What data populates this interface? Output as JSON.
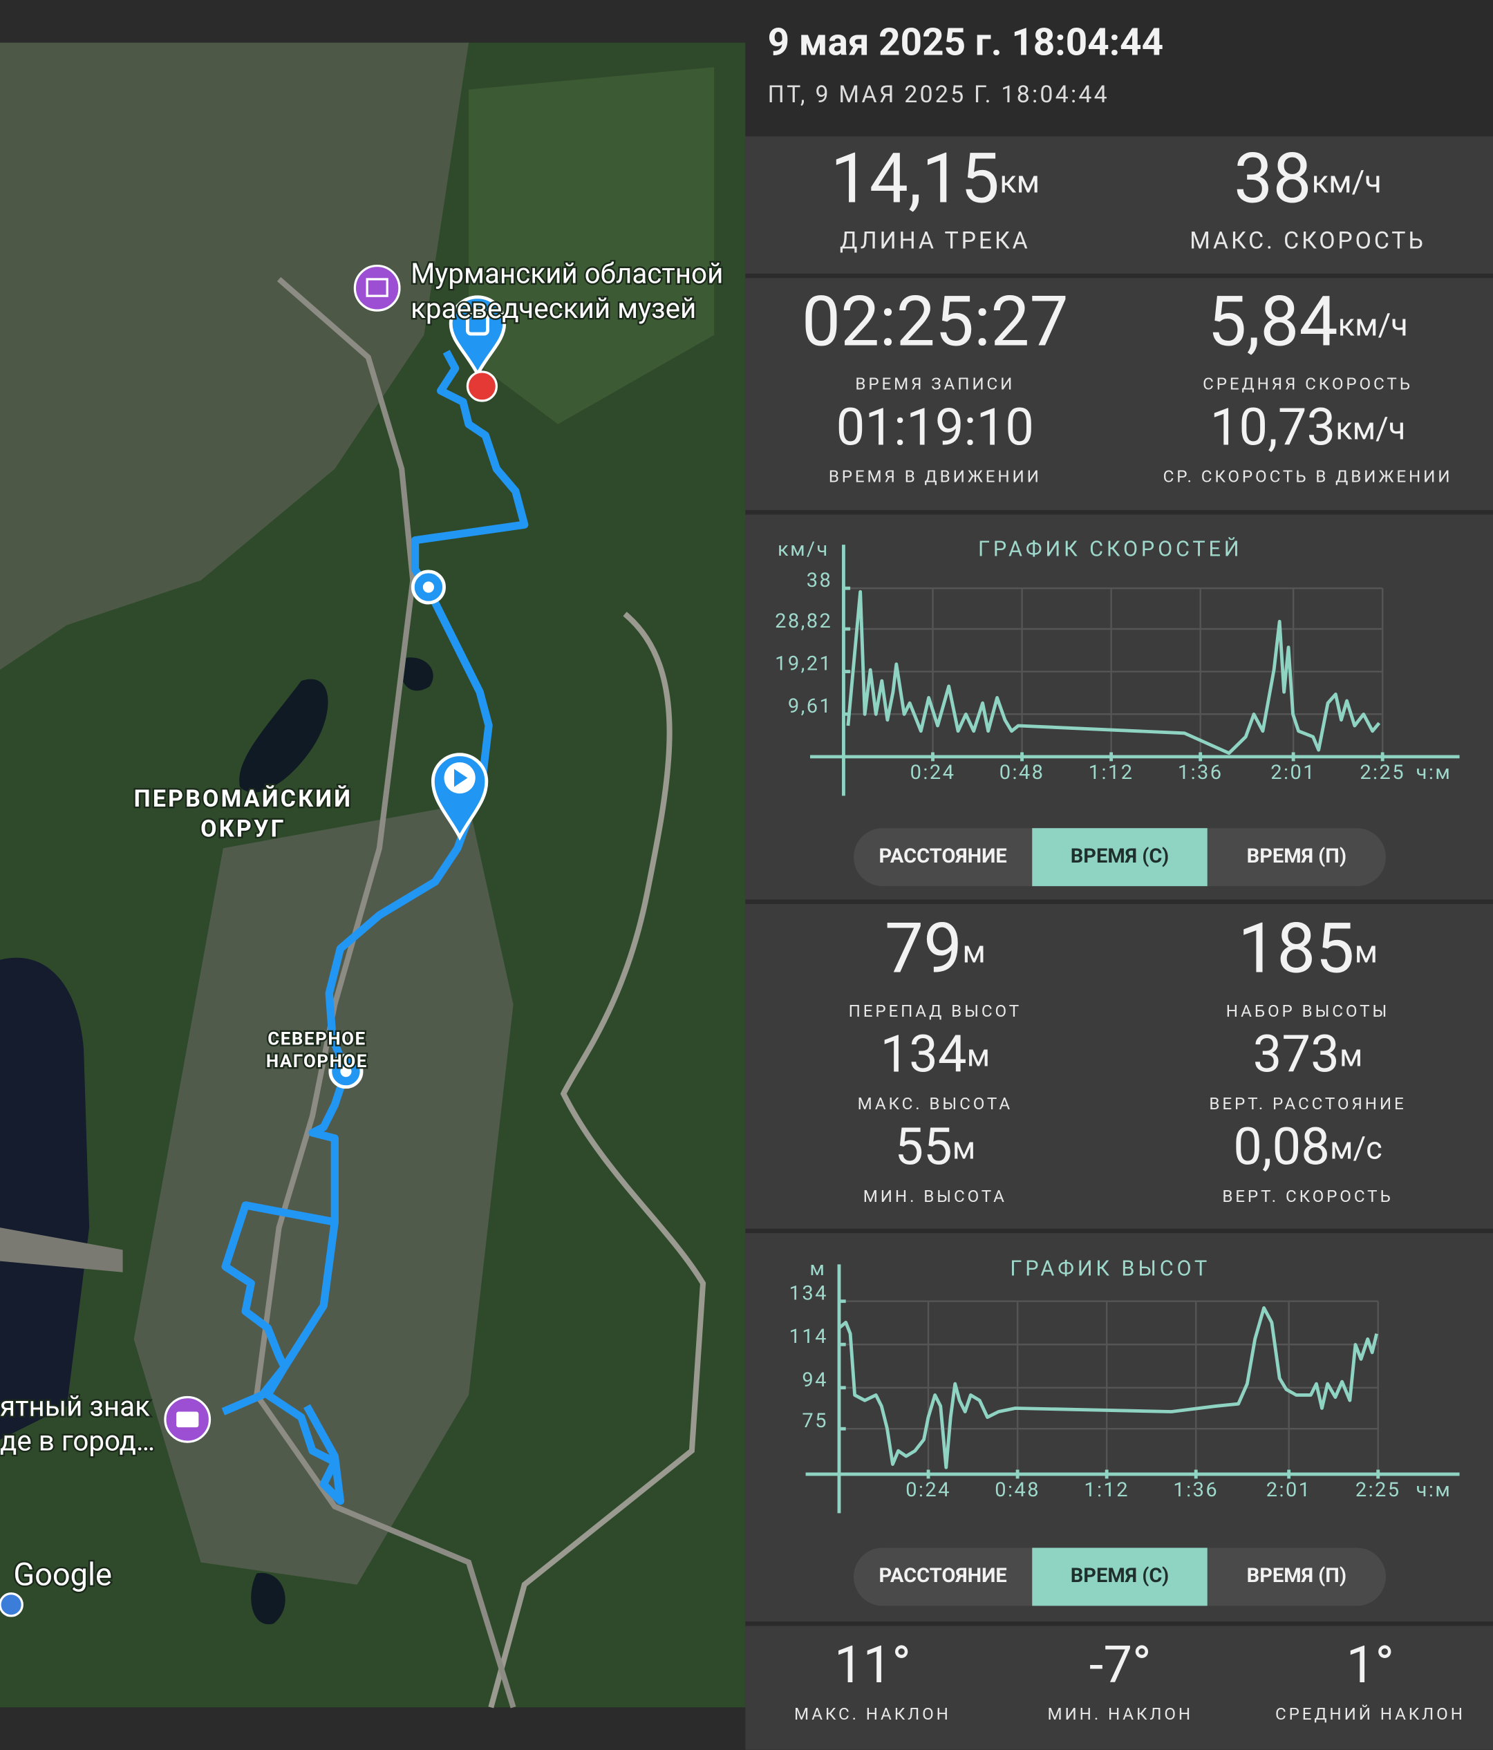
{
  "header": {
    "title": "9 мая 2025 г. 18:04:44",
    "subtitle": "ПТ, 9 МАЯ 2025 Г. 18:04:44"
  },
  "map_labels": [
    "Мурманский областной",
    "краеведческий музей",
    "ПЕРВОМАЙСКИЙ",
    "ОКРУГ",
    "СЕВЕРНОЕ",
    "НАГОРНОЕ",
    "ятный знак",
    "де в город…",
    "Google"
  ],
  "stats": [
    {
      "value": "14,15",
      "unit": "км",
      "label": "ДЛИНА ТРЕКА"
    },
    {
      "value": "38",
      "unit": "км/ч",
      "label": "МАКС. СКОРОСТЬ"
    },
    {
      "value": "02:25:27",
      "label": "ВРЕМЯ ЗАПИСИ"
    },
    {
      "value": "5,84",
      "unit": "км/ч",
      "label": "СРЕДНЯЯ СКОРОСТЬ"
    },
    {
      "value": "01:19:10",
      "label": "ВРЕМЯ В ДВИЖЕНИИ"
    },
    {
      "value": "10,73",
      "unit": "км/ч",
      "label": "СР. СКОРОСТЬ В ДВИЖЕНИИ"
    },
    {
      "value": "79",
      "unit": "м",
      "label": "ПЕРЕПАД ВЫСОТ"
    },
    {
      "value": "185",
      "unit": "м",
      "label": "НАБОР ВЫСОТЫ"
    },
    {
      "value": "134",
      "unit": "м",
      "label": "МАКС. ВЫСОТА"
    },
    {
      "value": "373",
      "unit": "м",
      "label": "ВЕРТ. РАССТОЯНИЕ"
    },
    {
      "value": "55",
      "unit": "м",
      "label": "МИН. ВЫСОТА"
    },
    {
      "value": "0,08",
      "unit": "м/с",
      "label": "ВЕРТ. СКОРОСТЬ"
    },
    {
      "value": "11°",
      "label": "МАКС. НАКЛОН"
    },
    {
      "value": "-7°",
      "label": "МИН. НАКЛОН"
    },
    {
      "value": "1°",
      "label": "СРЕДНИЙ НАКЛОН"
    }
  ],
  "toggles": [
    {
      "options": [
        "РАССТОЯНИЕ",
        "ВРЕМЯ (С)",
        "ВРЕМЯ (П)"
      ],
      "selected": 1
    },
    {
      "options": [
        "РАССТОЯНИЕ",
        "ВРЕМЯ (С)",
        "ВРЕМЯ (П)"
      ],
      "selected": 1
    }
  ],
  "chart_data": [
    {
      "type": "line",
      "title": "ГРАФИК СКОРОСТЕЙ",
      "y_label": "км/ч",
      "x_label": "ч:м",
      "color": "#8fd3c3",
      "grid": true,
      "xlim": [
        0,
        145
      ],
      "ylim": [
        0,
        38
      ],
      "xticks": [
        {
          "value": 24,
          "label": "0:24"
        },
        {
          "value": 48,
          "label": "0:48"
        },
        {
          "value": 72,
          "label": "1:12"
        },
        {
          "value": 96,
          "label": "1:36"
        },
        {
          "value": 121,
          "label": "2:01"
        },
        {
          "value": 145,
          "label": "2:25"
        }
      ],
      "yticks": [
        {
          "value": 9.61,
          "label": "9,61"
        },
        {
          "value": 19.21,
          "label": "19,21"
        },
        {
          "value": 28.82,
          "label": "28,82"
        },
        38
      ],
      "x": [
        1.2,
        4.5,
        5.7,
        7.2,
        8.7,
        10.3,
        11.8,
        13.3,
        14.2,
        16.3,
        17.8,
        20.8,
        22.9,
        25.3,
        28.3,
        30.8,
        32.9,
        35.0,
        37.4,
        38.9,
        41.3,
        43.4,
        45.2,
        47.0,
        91.7,
        103.7,
        108.2,
        110.4,
        112.8,
        115.8,
        117.3,
        118.5,
        119.7,
        120.9,
        122.4,
        126.3,
        127.8,
        130.3,
        132.4,
        133.9,
        135.4,
        137.5,
        139.9,
        142.3,
        144.1
      ],
      "values": [
        7.0,
        37.2,
        9.6,
        19.6,
        9.6,
        17.1,
        8.3,
        14.6,
        20.9,
        9.6,
        12.1,
        5.8,
        13.3,
        7.0,
        15.9,
        5.8,
        9.6,
        5.8,
        12.1,
        5.8,
        13.3,
        8.3,
        5.8,
        7.0,
        5.3,
        0.8,
        4.5,
        9.6,
        5.8,
        19.6,
        30.5,
        14.6,
        24.7,
        9.6,
        5.8,
        4.5,
        1.5,
        12.1,
        14.1,
        8.3,
        12.6,
        7.0,
        9.6,
        5.8,
        7.6
      ]
    },
    {
      "type": "line",
      "title": "ГРАФИК ВЫСОТ",
      "y_label": "м",
      "x_label": "ч:м",
      "color": "#8fd3c3",
      "grid": true,
      "xlim": [
        0,
        145
      ],
      "ylim": [
        54,
        134
      ],
      "xticks": [
        {
          "value": 24,
          "label": "0:24"
        },
        {
          "value": 48,
          "label": "0:48"
        },
        {
          "value": 72,
          "label": "1:12"
        },
        {
          "value": 96,
          "label": "1:36"
        },
        {
          "value": 121,
          "label": "2:01"
        },
        {
          "value": 145,
          "label": "2:25"
        }
      ],
      "yticks": [
        75,
        94,
        114,
        134
      ],
      "x": [
        0,
        1.8,
        3.0,
        4.2,
        6.9,
        9.9,
        11.4,
        12.9,
        14.4,
        15.9,
        18.0,
        20.4,
        22.8,
        24.0,
        25.8,
        27.3,
        28.8,
        30.0,
        31.2,
        32.4,
        33.9,
        35.4,
        37.8,
        39.9,
        42.9,
        47.4,
        89.4,
        101.4,
        107.4,
        109.8,
        111.9,
        114.3,
        116.4,
        118.5,
        120.3,
        123.0,
        126.9,
        128.4,
        129.9,
        131.4,
        133.5,
        135.3,
        137.4,
        138.9,
        140.4,
        142.2,
        143.4,
        144.6
      ],
      "values": [
        121.6,
        124.2,
        119.0,
        90.6,
        88.1,
        90.6,
        85.5,
        75.2,
        58.6,
        64.8,
        62.3,
        64.8,
        70.0,
        80.3,
        90.6,
        85.5,
        57.1,
        80.3,
        95.8,
        88.1,
        82.9,
        90.6,
        88.1,
        80.3,
        82.9,
        84.5,
        82.9,
        85.5,
        86.5,
        95.8,
        116.5,
        130.9,
        124.2,
        98.4,
        93.2,
        90.6,
        90.6,
        95.8,
        84.5,
        95.8,
        89.6,
        96.8,
        88.1,
        113.9,
        107.2,
        116.5,
        110.3,
        119.0
      ]
    }
  ]
}
